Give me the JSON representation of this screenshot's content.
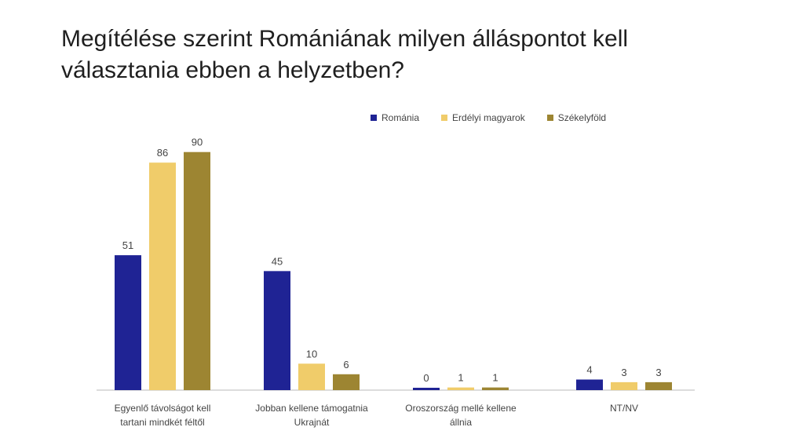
{
  "chart_data": {
    "type": "bar",
    "title": "Megítélése szerint Romániának milyen álláspontot kell választania ebben a helyzetben?",
    "categories": [
      [
        "Egyenlő távolságot kell",
        "tartani mindkét féltől"
      ],
      [
        "Jobban kellene támogatnia",
        "Ukrajnát"
      ],
      [
        "Oroszország mellé kellene",
        "állnia"
      ],
      [
        "NT/NV"
      ]
    ],
    "series": [
      {
        "name": "Románia",
        "color": "#1f2394",
        "values": [
          51,
          45,
          0,
          4
        ]
      },
      {
        "name": "Erdélyi magyarok",
        "color": "#f0cc6a",
        "values": [
          86,
          10,
          1,
          3
        ]
      },
      {
        "name": "Székelyföld",
        "color": "#9d8532",
        "values": [
          90,
          6,
          1,
          3
        ]
      }
    ],
    "ylim": [
      0,
      100
    ],
    "legend_position": "top-right",
    "grid": false
  }
}
